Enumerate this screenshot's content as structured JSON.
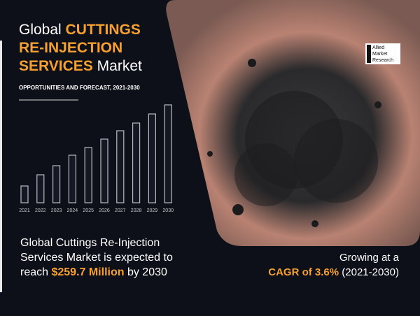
{
  "header": {
    "title_prefix": "Global ",
    "title_highlight_1": "CUTTINGS",
    "title_highlight_2": "RE-INJECTION",
    "title_highlight_3": "SERVICES",
    "title_suffix": " Market",
    "subtitle": "OPPORTUNITIES AND FORECAST, 2021-2030"
  },
  "logo": {
    "line_1": "Allied",
    "line_2": "Market",
    "line_3": "Research"
  },
  "chart_data": {
    "type": "bar",
    "categories": [
      "2021",
      "2022",
      "2023",
      "2024",
      "2025",
      "2026",
      "2027",
      "2028",
      "2029",
      "2030"
    ],
    "values": [
      24,
      40,
      53,
      68,
      79,
      91,
      103,
      114,
      127,
      140
    ],
    "color": "#b9bcc4"
  },
  "summary": {
    "line_1": "Global Cuttings Re-Injection",
    "line_2": "Services Market is expected to",
    "line_3_prefix": "reach ",
    "line_3_highlight": "$259.7 Million",
    "line_3_suffix": " by 2030"
  },
  "growth": {
    "line_1": "Growing at a",
    "highlight": "CAGR of 3.6%",
    "period": "(2021-2030)"
  }
}
